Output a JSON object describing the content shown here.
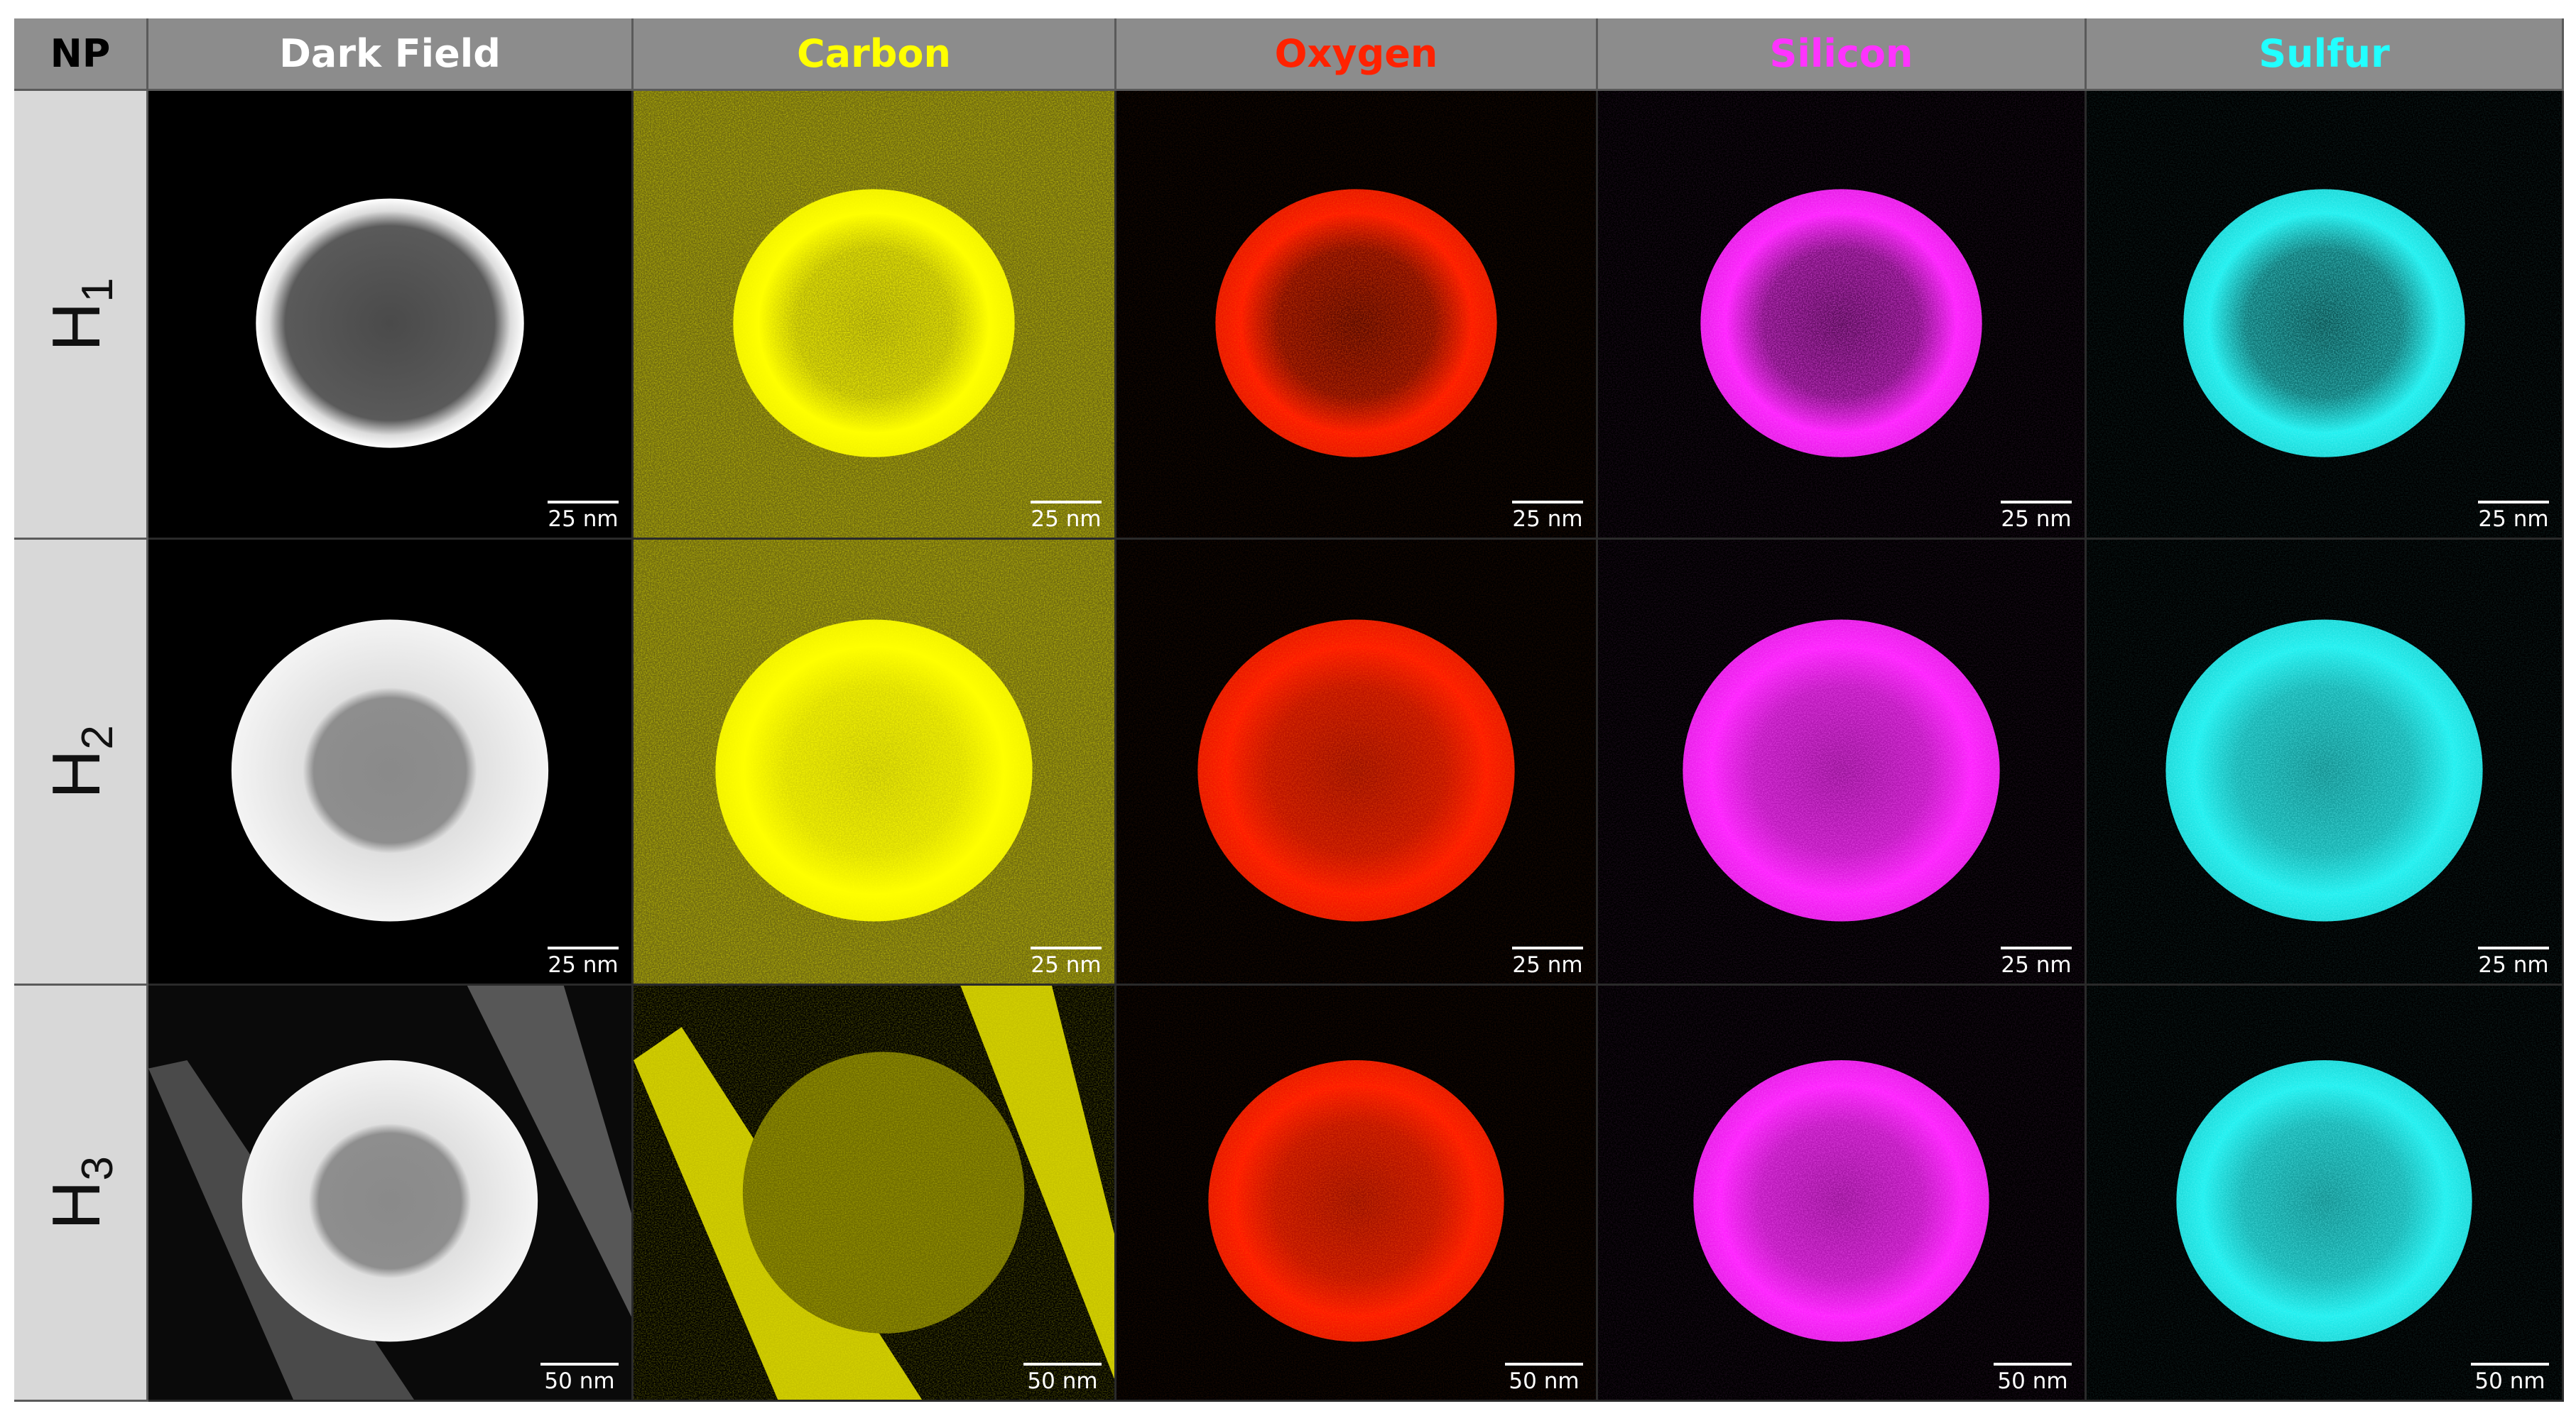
{
  "header": {
    "np": "NP",
    "columns": [
      {
        "label": "Dark Field",
        "color": "#ffffff"
      },
      {
        "label": "Carbon",
        "color": "#ffff00"
      },
      {
        "label": "Oxygen",
        "color": "#ff2200"
      },
      {
        "label": "Silicon",
        "color": "#ff33ff"
      },
      {
        "label": "Sulfur",
        "color": "#22ffff"
      }
    ]
  },
  "rows": [
    {
      "label": "H",
      "sub": "1",
      "scale": "25 nm"
    },
    {
      "label": "H",
      "sub": "2",
      "scale": "25 nm"
    },
    {
      "label": "H",
      "sub": "3",
      "scale": "50 nm"
    }
  ],
  "colors": {
    "dark_field": "#d8d8d8",
    "carbon": "#ffff00",
    "oxygen": "#ff1a00",
    "silicon": "#ff22ff",
    "sulfur": "#22f0f0"
  }
}
